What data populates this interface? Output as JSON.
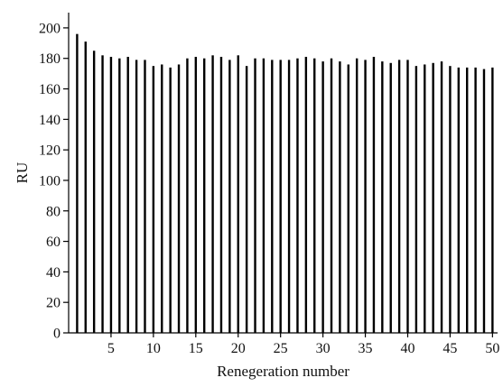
{
  "chart_data": {
    "type": "bar",
    "title": "",
    "xlabel": "Renegeration number",
    "ylabel": "RU",
    "categories": [
      1,
      2,
      3,
      4,
      5,
      6,
      7,
      8,
      9,
      10,
      11,
      12,
      13,
      14,
      15,
      16,
      17,
      18,
      19,
      20,
      21,
      22,
      23,
      24,
      25,
      26,
      27,
      28,
      29,
      30,
      31,
      32,
      33,
      34,
      35,
      36,
      37,
      38,
      39,
      40,
      41,
      42,
      43,
      44,
      45,
      46,
      47,
      48,
      49,
      50
    ],
    "values": [
      196,
      191,
      185,
      182,
      181,
      180,
      181,
      179,
      179,
      175,
      176,
      174,
      176,
      180,
      181,
      180,
      182,
      181,
      179,
      182,
      175,
      180,
      180,
      179,
      179,
      179,
      180,
      181,
      180,
      178,
      180,
      178,
      176,
      180,
      179,
      181,
      178,
      177,
      179,
      179,
      175,
      176,
      177,
      178,
      175,
      174,
      174,
      174,
      173,
      174
    ],
    "ylim": [
      0,
      210
    ],
    "xlim": [
      0,
      50.6
    ],
    "y_ticks": [
      0,
      20,
      40,
      60,
      80,
      100,
      120,
      140,
      160,
      180,
      200
    ],
    "x_ticks": [
      5,
      10,
      15,
      20,
      25,
      30,
      35,
      40,
      45,
      50
    ],
    "grid": false,
    "bar_color": "#000000"
  }
}
